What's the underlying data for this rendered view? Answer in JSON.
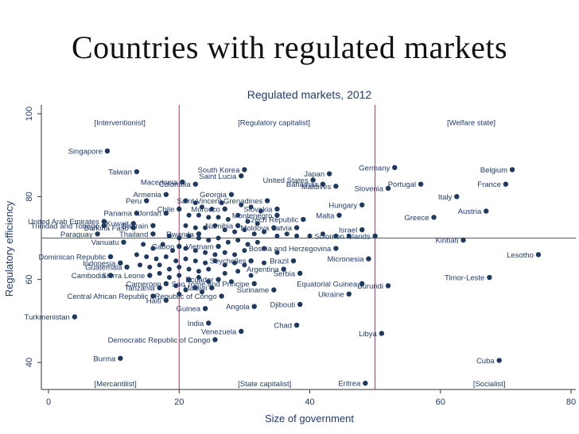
{
  "slide": {
    "title": "Countries with regulated markets"
  },
  "chart_data": {
    "type": "scatter",
    "title": "Regulated markets, 2012",
    "xlabel": "Size of government",
    "ylabel": "Regulatory efficiency",
    "xlim": [
      0,
      80
    ],
    "ylim": [
      34,
      102
    ],
    "xticks": [
      0,
      20,
      40,
      60,
      80
    ],
    "yticks": [
      40,
      60,
      80,
      100
    ],
    "grid": false,
    "reference_lines": {
      "x": [
        20,
        50
      ],
      "y": [
        70
      ]
    },
    "colors": {
      "point": "#1f3a5e",
      "label": "#1f3a6e",
      "reference_line": "#b03060"
    },
    "quadrant_labels": [
      {
        "text": "[Interventionist]",
        "x": 7,
        "y": 98
      },
      {
        "text": "[Regulatory capitalist]",
        "x": 29,
        "y": 98
      },
      {
        "text": "[Welfare state]",
        "x": 61,
        "y": 98
      },
      {
        "text": "[Mercantilist]",
        "x": 7,
        "y": 35
      },
      {
        "text": "[State capitalist]",
        "x": 29,
        "y": 35
      },
      {
        "text": "[Socialist]",
        "x": 65,
        "y": 35
      }
    ],
    "points": [
      {
        "label": "Singapore",
        "x": 9,
        "y": 91
      },
      {
        "label": "Taiwan",
        "x": 13.5,
        "y": 86
      },
      {
        "label": "South Korea",
        "x": 30,
        "y": 86.5
      },
      {
        "label": "Saint Lucia",
        "x": 29.5,
        "y": 85
      },
      {
        "label": "Macedonia",
        "x": 20.5,
        "y": 83.5
      },
      {
        "label": "Colombia",
        "x": 22.5,
        "y": 83
      },
      {
        "label": "Japan",
        "x": 43,
        "y": 85.5
      },
      {
        "label": "United States",
        "x": 40.5,
        "y": 84
      },
      {
        "label": "Bahamas",
        "x": 42,
        "y": 83
      },
      {
        "label": "Maldives",
        "x": 44,
        "y": 82.5
      },
      {
        "label": "Germany",
        "x": 53,
        "y": 87
      },
      {
        "label": "Portugal",
        "x": 57,
        "y": 83
      },
      {
        "label": "Slovenia",
        "x": 52,
        "y": 82
      },
      {
        "label": "Belgium",
        "x": 71,
        "y": 86.5
      },
      {
        "label": "France",
        "x": 70,
        "y": 83
      },
      {
        "label": "Armenia",
        "x": 18,
        "y": 80.5
      },
      {
        "label": "Georgia",
        "x": 28,
        "y": 80.5
      },
      {
        "label": "Peru",
        "x": 15,
        "y": 79
      },
      {
        "label": "Saint Vincent Grenadines",
        "x": 33.5,
        "y": 79
      },
      {
        "label": "Italy",
        "x": 62.5,
        "y": 80
      },
      {
        "label": "Slovakia",
        "x": 35,
        "y": 77
      },
      {
        "label": "Chile",
        "x": 20,
        "y": 77
      },
      {
        "label": "Morocco",
        "x": 27,
        "y": 77
      },
      {
        "label": "Hungary",
        "x": 48,
        "y": 78
      },
      {
        "label": "Panama",
        "x": 13.5,
        "y": 76
      },
      {
        "label": "Jordan",
        "x": 18,
        "y": 76
      },
      {
        "label": "Montenegro",
        "x": 35,
        "y": 75.5
      },
      {
        "label": "Malta",
        "x": 44.5,
        "y": 75.5
      },
      {
        "label": "Austria",
        "x": 67,
        "y": 76.5
      },
      {
        "label": "Greece",
        "x": 59,
        "y": 75
      },
      {
        "label": "Czech Republic",
        "x": 39,
        "y": 74.5
      },
      {
        "label": "United Arab Emirates",
        "x": 8.5,
        "y": 74
      },
      {
        "label": "Trinidad and Tobago",
        "x": 8.5,
        "y": 73
      },
      {
        "label": "Kuwait",
        "x": 13,
        "y": 73.5
      },
      {
        "label": "Bahrain",
        "x": 16,
        "y": 73
      },
      {
        "label": "Namibia",
        "x": 29,
        "y": 73
      },
      {
        "label": "Moldova",
        "x": 34.5,
        "y": 72.5
      },
      {
        "label": "Latvia",
        "x": 38,
        "y": 72.5
      },
      {
        "label": "Burkina Faso",
        "x": 13,
        "y": 72.5
      },
      {
        "label": "Solomon Islands",
        "x": 50,
        "y": 70.5
      },
      {
        "label": "Israel",
        "x": 48,
        "y": 72
      },
      {
        "label": "Paraguay",
        "x": 7.5,
        "y": 71
      },
      {
        "label": "Thailand",
        "x": 16,
        "y": 71
      },
      {
        "label": "Rwanda",
        "x": 23,
        "y": 71
      },
      {
        "label": "Vanuatu",
        "x": 11.5,
        "y": 69
      },
      {
        "label": "Kiribati",
        "x": 63.5,
        "y": 69.5
      },
      {
        "label": "Vietnam",
        "x": 26,
        "y": 68
      },
      {
        "label": "Gabon",
        "x": 20,
        "y": 68
      },
      {
        "label": "Bosnia and Herzegovina",
        "x": 44,
        "y": 67.5
      },
      {
        "label": "Lesotho",
        "x": 75,
        "y": 66
      },
      {
        "label": "Dominican Republic",
        "x": 9.5,
        "y": 65.5
      },
      {
        "label": "Indonesia",
        "x": 11,
        "y": 64
      },
      {
        "label": "Guatemala",
        "x": 12,
        "y": 63
      },
      {
        "label": "Brazil",
        "x": 37.5,
        "y": 64.5
      },
      {
        "label": "Seychelles",
        "x": 31,
        "y": 64.5
      },
      {
        "label": "Micronesia",
        "x": 49,
        "y": 65
      },
      {
        "label": "Argentina",
        "x": 36,
        "y": 62.5
      },
      {
        "label": "Serbia",
        "x": 38.5,
        "y": 61.5
      },
      {
        "label": "Cambodia",
        "x": 9.5,
        "y": 61
      },
      {
        "label": "Sierra Leone",
        "x": 15.5,
        "y": 61
      },
      {
        "label": "Timor-Leste",
        "x": 67.5,
        "y": 60.5
      },
      {
        "label": "Ecuador",
        "x": 26,
        "y": 60
      },
      {
        "label": "Equatorial Guinea",
        "x": 48,
        "y": 59
      },
      {
        "label": "Burundi",
        "x": 52,
        "y": 58.5
      },
      {
        "label": "Sao Tome and Principe",
        "x": 31.5,
        "y": 59
      },
      {
        "label": "Cameroon",
        "x": 18,
        "y": 59
      },
      {
        "label": "Tanzania",
        "x": 17,
        "y": 58
      },
      {
        "label": "Malawi",
        "x": 25,
        "y": 58
      },
      {
        "label": "Suriname",
        "x": 34.5,
        "y": 57.5
      },
      {
        "label": "Ukraine",
        "x": 46,
        "y": 56.5
      },
      {
        "label": "Central African Republic",
        "x": 16,
        "y": 56
      },
      {
        "label": "Republic of Congo",
        "x": 26.5,
        "y": 56
      },
      {
        "label": "Haiti",
        "x": 18,
        "y": 55
      },
      {
        "label": "Djibouti",
        "x": 38.5,
        "y": 54
      },
      {
        "label": "Angola",
        "x": 31.5,
        "y": 53.5
      },
      {
        "label": "Guinea",
        "x": 24,
        "y": 53
      },
      {
        "label": "Turkmenistan",
        "x": 4,
        "y": 51
      },
      {
        "label": "India",
        "x": 24.5,
        "y": 49.5
      },
      {
        "label": "Chad",
        "x": 38,
        "y": 49
      },
      {
        "label": "Venezuela",
        "x": 29.5,
        "y": 47.5
      },
      {
        "label": "Libya",
        "x": 51,
        "y": 47
      },
      {
        "label": "Democratic Republic of Congo",
        "x": 25.5,
        "y": 45.5
      },
      {
        "label": "Burma",
        "x": 11,
        "y": 41
      },
      {
        "label": "Cuba",
        "x": 69,
        "y": 40.5
      },
      {
        "label": "Eritrea",
        "x": 48.5,
        "y": 35
      }
    ],
    "unlabeled_points": [
      [
        21,
        79
      ],
      [
        22.5,
        78.5
      ],
      [
        23.5,
        77.5
      ],
      [
        25,
        77
      ],
      [
        26.5,
        78.5
      ],
      [
        29.5,
        78
      ],
      [
        31,
        77.5
      ],
      [
        32.5,
        76.5
      ],
      [
        21.5,
        75.5
      ],
      [
        23,
        75.5
      ],
      [
        24.5,
        75
      ],
      [
        26,
        75
      ],
      [
        27.5,
        74.5
      ],
      [
        29,
        75.5
      ],
      [
        30.5,
        74
      ],
      [
        32,
        73.5
      ],
      [
        21,
        73
      ],
      [
        22.5,
        72.5
      ],
      [
        24,
        72.5
      ],
      [
        25.5,
        73
      ],
      [
        27,
        72
      ],
      [
        28.5,
        71.5
      ],
      [
        30,
        72
      ],
      [
        31.5,
        71
      ],
      [
        33,
        71.5
      ],
      [
        35,
        70.5
      ],
      [
        36.5,
        71
      ],
      [
        38,
        70.5
      ],
      [
        40,
        70.5
      ],
      [
        42,
        71
      ],
      [
        44,
        70.5
      ],
      [
        46,
        70.5
      ],
      [
        18.5,
        70.5
      ],
      [
        20,
        70
      ],
      [
        21.5,
        70.5
      ],
      [
        23,
        70
      ],
      [
        24.5,
        69.5
      ],
      [
        26,
        70
      ],
      [
        27.5,
        69
      ],
      [
        29,
        69.5
      ],
      [
        30.5,
        68.5
      ],
      [
        32,
        69
      ],
      [
        14.5,
        68.5
      ],
      [
        16,
        67.5
      ],
      [
        17.5,
        68.5
      ],
      [
        19,
        67
      ],
      [
        21,
        67.5
      ],
      [
        22.5,
        67
      ],
      [
        24,
        66.5
      ],
      [
        25.5,
        66
      ],
      [
        27,
        66.5
      ],
      [
        28.5,
        66
      ],
      [
        30,
        67
      ],
      [
        33,
        67.5
      ],
      [
        35,
        66.5
      ],
      [
        13.5,
        66
      ],
      [
        15,
        65.5
      ],
      [
        16.5,
        65
      ],
      [
        18,
        65.5
      ],
      [
        19.5,
        64.5
      ],
      [
        21,
        65
      ],
      [
        22.5,
        64.5
      ],
      [
        24,
        64
      ],
      [
        25.5,
        64.5
      ],
      [
        27,
        63.5
      ],
      [
        28.5,
        64
      ],
      [
        30,
        63.5
      ],
      [
        33,
        64
      ],
      [
        14,
        63.5
      ],
      [
        15.5,
        63
      ],
      [
        17,
        63.5
      ],
      [
        18.5,
        62.5
      ],
      [
        20,
        63
      ],
      [
        21.5,
        62.5
      ],
      [
        23,
        62
      ],
      [
        24.5,
        62.5
      ],
      [
        27,
        61.5
      ],
      [
        29,
        62
      ],
      [
        31,
        61
      ],
      [
        17,
        61.5
      ],
      [
        18.5,
        60.5
      ],
      [
        20,
        61
      ],
      [
        21.5,
        60
      ],
      [
        23,
        60.5
      ],
      [
        24.5,
        59.5
      ],
      [
        28,
        59.5
      ],
      [
        19.5,
        58.5
      ],
      [
        21,
        57.5
      ],
      [
        22.5,
        58
      ],
      [
        23.5,
        57
      ],
      [
        20,
        56.5
      ]
    ]
  }
}
